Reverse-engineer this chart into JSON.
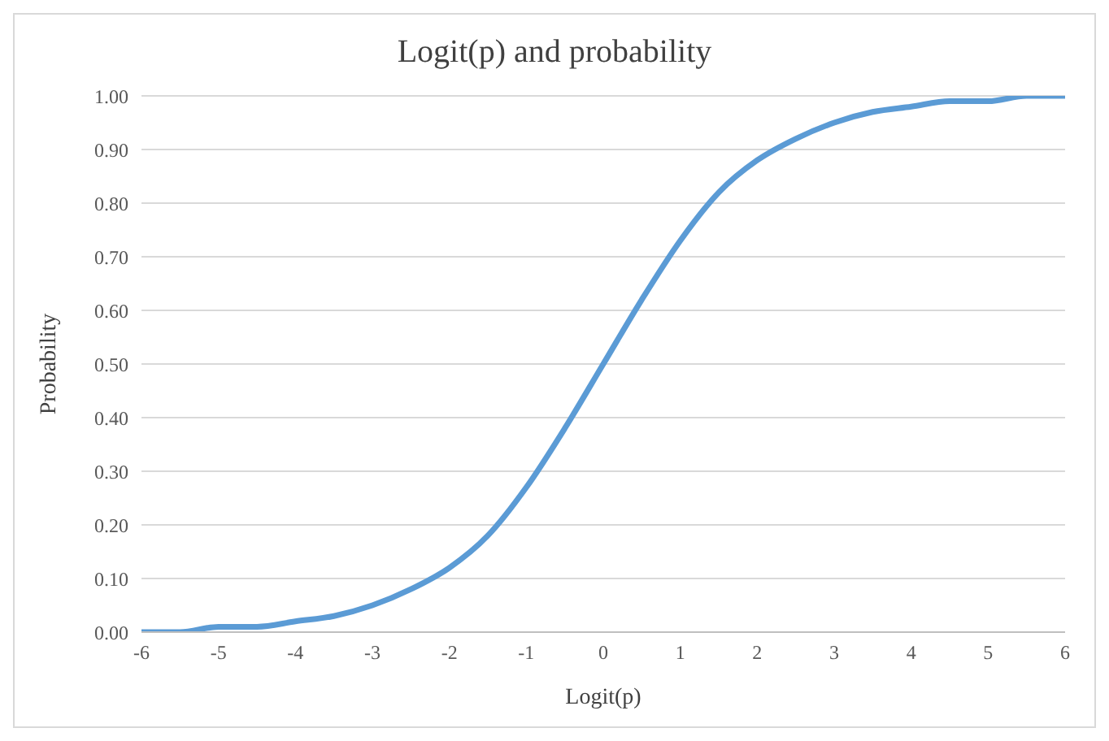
{
  "chart_data": {
    "type": "line",
    "title": "Logit(p) and probability",
    "xlabel": "Logit(p)",
    "ylabel": "Probability",
    "x": [
      -6,
      -5.5,
      -5,
      -4.5,
      -4,
      -3.5,
      -3,
      -2.5,
      -2,
      -1.5,
      -1,
      -0.5,
      0,
      0.5,
      1,
      1.5,
      2,
      2.5,
      3,
      3.5,
      4,
      4.5,
      5,
      5.5,
      6
    ],
    "series": [
      {
        "color": "#5b9bd5",
        "values": [
          0.0,
          0.0,
          0.01,
          0.01,
          0.02,
          0.03,
          0.05,
          0.08,
          0.12,
          0.18,
          0.27,
          0.38,
          0.5,
          0.62,
          0.73,
          0.82,
          0.88,
          0.92,
          0.95,
          0.97,
          0.98,
          0.99,
          0.99,
          1.0,
          1.0
        ]
      }
    ],
    "xlim": [
      -6,
      6
    ],
    "xticks": [
      -6,
      -5,
      -4,
      -3,
      -2,
      -1,
      0,
      1,
      2,
      3,
      4,
      5,
      6
    ],
    "ylim": [
      0,
      1
    ],
    "yticks": [
      {
        "value": 0,
        "label": "0.00"
      },
      {
        "value": 0.1,
        "label": "0.10"
      },
      {
        "value": 0.2,
        "label": "0.20"
      },
      {
        "value": 0.3,
        "label": "0.30"
      },
      {
        "value": 0.4,
        "label": "0.40"
      },
      {
        "value": 0.5,
        "label": "0.50"
      },
      {
        "value": 0.6,
        "label": "0.60"
      },
      {
        "value": 0.7,
        "label": "0.70"
      },
      {
        "value": 0.8,
        "label": "0.80"
      },
      {
        "value": 0.9,
        "label": "0.90"
      },
      {
        "value": 1,
        "label": "1.00"
      }
    ],
    "grid": "y",
    "legend": false,
    "marker": "none",
    "line_style": "solid"
  }
}
